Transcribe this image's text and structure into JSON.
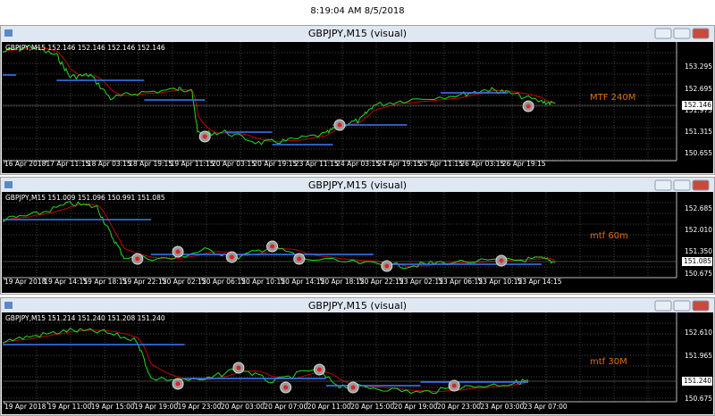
{
  "header": {
    "clock": "8:19:04 AM 8/5/2018"
  },
  "windows": [
    {
      "title": "GBPJPY,M15 (visual)",
      "info": "GBPJPY,M15  152.146 152.146 152.146 152.146",
      "indicator": "MTF 240M",
      "price_labels": [
        "153.295",
        "152.695",
        "151.975",
        "151.315",
        "150.655"
      ],
      "current_price": "152.146",
      "time_labels": [
        "16 Apr 2018",
        "17 Apr 11:15",
        "18 Apr 03:15",
        "18 Apr 19:15",
        "19 Apr 11:15",
        "20 Apr 03:15",
        "20 Apr 19:15",
        "23 Apr 11:15",
        "24 Apr 03:15",
        "24 Apr 19:15",
        "25 Apr 11:15",
        "26 Apr 03:15",
        "26 Apr 19:15"
      ]
    },
    {
      "title": "GBPJPY,M15 (visual)",
      "info": "GBPJPY,M15  151.009 151.096 150.991 151.085",
      "indicator": "mtf 60m",
      "price_labels": [
        "152.685",
        "152.010",
        "151.350",
        "150.675"
      ],
      "current_price": "151.085",
      "time_labels": [
        "19 Apr 2018",
        "19 Apr 14:15",
        "19 Apr 18:15",
        "19 Apr 22:15",
        "20 Apr 02:15",
        "20 Apr 06:15",
        "20 Apr 10:15",
        "20 Apr 14:15",
        "20 Apr 18:15",
        "20 Apr 22:15",
        "23 Apr 02:15",
        "23 Apr 06:15",
        "23 Apr 10:15",
        "23 Apr 14:15"
      ]
    },
    {
      "title": "GBPJPY,M15 (visual)",
      "info": "GBPJPY,M15  151.214 151.240 151.208 151.240",
      "indicator": "mtf 30M",
      "price_labels": [
        "152.610",
        "151.965",
        "150.675"
      ],
      "current_price": "151.240",
      "time_labels": [
        "19 Apr 2018",
        "19 Apr 11:00",
        "19 Apr 15:00",
        "19 Apr 19:00",
        "19 Apr 23:00",
        "20 Apr 03:00",
        "20 Apr 07:00",
        "20 Apr 11:00",
        "20 Apr 15:00",
        "20 Apr 19:00",
        "20 Apr 23:00",
        "23 Apr 03:00",
        "23 Apr 07:00"
      ]
    }
  ]
}
